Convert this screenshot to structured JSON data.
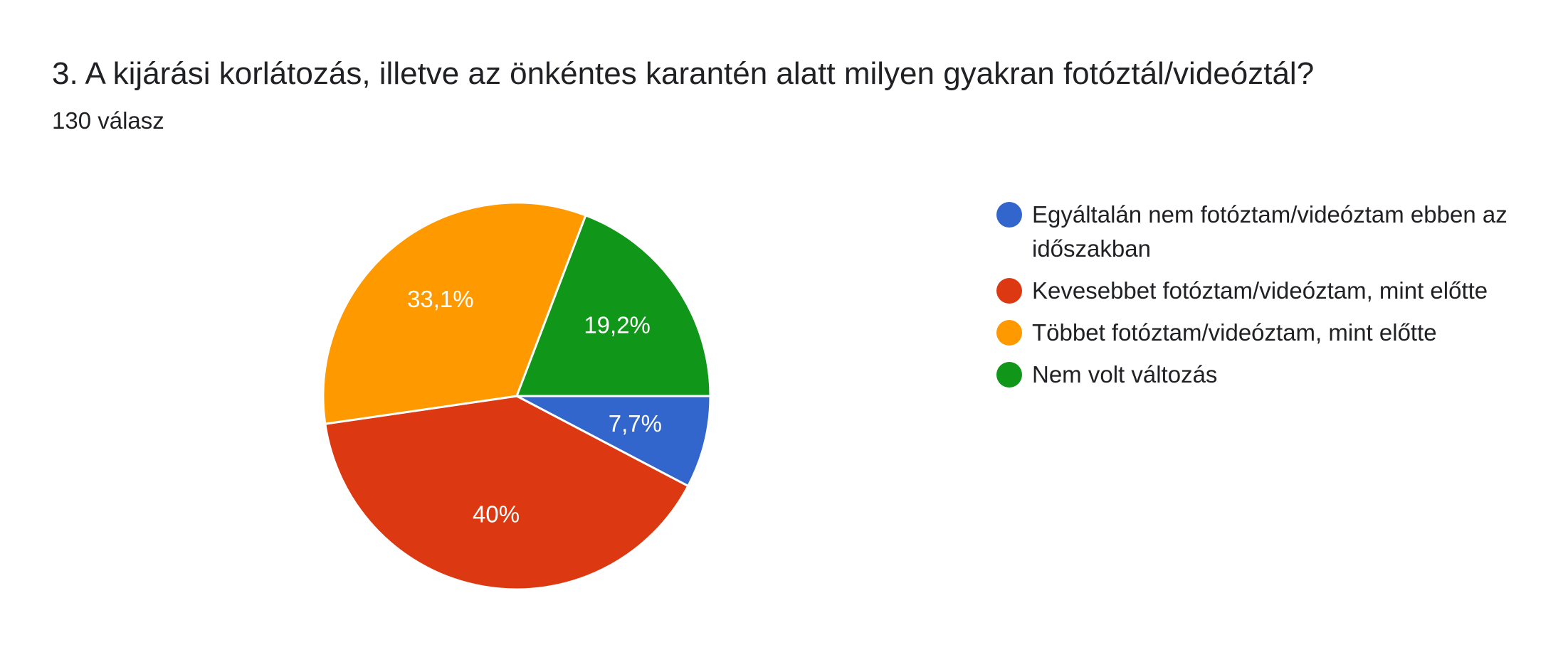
{
  "title": "3. A kijárási korlátozás, illetve az önkéntes karantén alatt milyen gyakran fotóztál/videóztál?",
  "subtitle": "130 válasz",
  "chart_data": {
    "type": "pie",
    "slices": [
      {
        "label": "Egyáltalán nem fotóztam/videóztam ebben az időszakban",
        "value": 7.7,
        "display": "7,7%",
        "color": "#3366cc"
      },
      {
        "label": "Kevesebbet fotóztam/videóztam, mint előtte",
        "value": 40,
        "display": "40%",
        "color": "#dc3912"
      },
      {
        "label": "Többet fotóztam/videóztam, mint előtte",
        "value": 33.1,
        "display": "33,1%",
        "color": "#ff9900"
      },
      {
        "label": "Nem volt változás",
        "value": 19.2,
        "display": "19,2%",
        "color": "#109618"
      }
    ],
    "legend_position": "right"
  }
}
